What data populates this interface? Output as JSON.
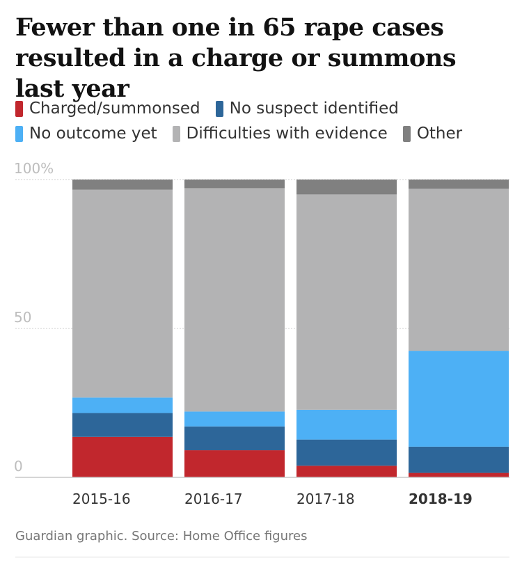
{
  "title": "Fewer than one in 65 rape cases resulted in a charge or summons last year",
  "source": "Guardian graphic. Source: Home Office figures",
  "colors": {
    "charged": "#c1272d",
    "no_suspect": "#2d6699",
    "no_outcome": "#4db0f5",
    "evidence": "#b3b3b4",
    "other": "#808080"
  },
  "legend": [
    {
      "label": "Charged/summonsed",
      "key": "charged"
    },
    {
      "label": "No suspect identified",
      "key": "no_suspect"
    },
    {
      "label": "No outcome yet",
      "key": "no_outcome"
    },
    {
      "label": "Difficulties with evidence",
      "key": "evidence"
    },
    {
      "label": "Other",
      "key": "other"
    }
  ],
  "chart_data": {
    "type": "bar",
    "stacked": true,
    "categories": [
      "2015-16",
      "2016-17",
      "2017-18",
      "2018-19"
    ],
    "highlight_category": "2018-19",
    "ylim": [
      0,
      100
    ],
    "yticks": [
      {
        "value": 100,
        "label": "100%"
      },
      {
        "value": 50,
        "label": "50"
      },
      {
        "value": 0,
        "label": "0"
      }
    ],
    "series": [
      {
        "name": "Charged/summonsed",
        "key": "charged",
        "values": [
          13.6,
          9.1,
          3.9,
          1.5
        ]
      },
      {
        "name": "No suspect identified",
        "key": "no_suspect",
        "values": [
          8.0,
          8.0,
          8.8,
          8.8
        ]
      },
      {
        "name": "No outcome yet",
        "key": "no_outcome",
        "values": [
          5.2,
          5.0,
          10.0,
          32.2
        ]
      },
      {
        "name": "Difficulties with evidence",
        "key": "evidence",
        "values": [
          69.8,
          75.0,
          72.3,
          54.4
        ]
      },
      {
        "name": "Other",
        "key": "other",
        "values": [
          3.4,
          2.9,
          5.0,
          3.1
        ]
      }
    ]
  }
}
